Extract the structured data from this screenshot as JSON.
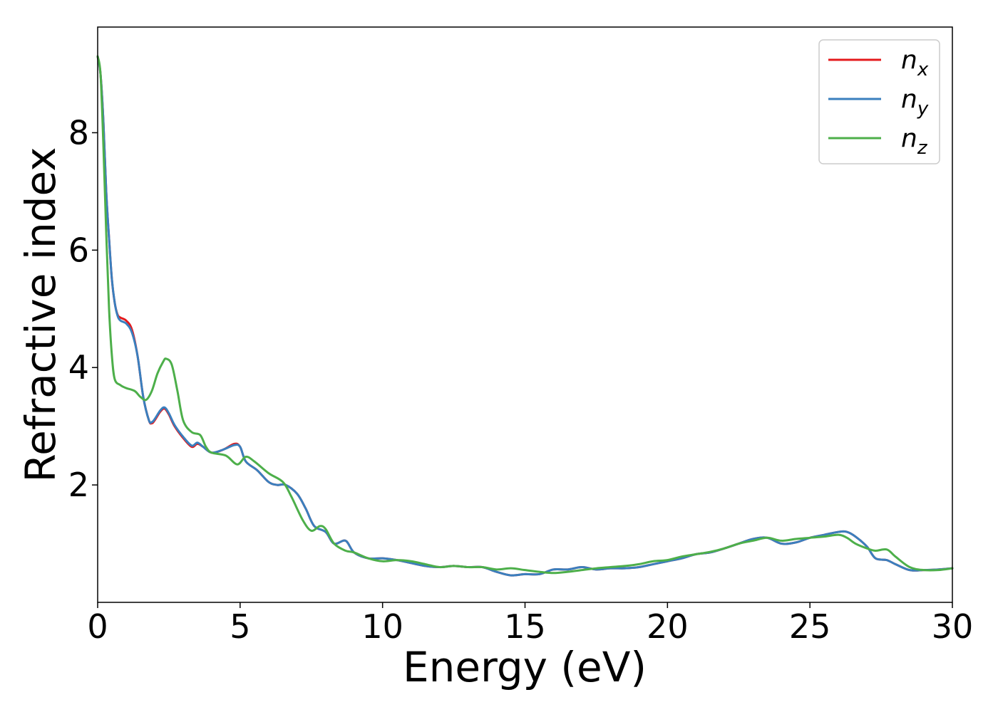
{
  "chart_data": {
    "type": "line",
    "title": "",
    "xlabel": "Energy (eV)",
    "ylabel": "Refractive index",
    "xlim": [
      0,
      30
    ],
    "ylim": [
      0.0,
      9.8
    ],
    "xticks": [
      0,
      5,
      10,
      15,
      20,
      25,
      30
    ],
    "yticks": [
      2,
      4,
      6,
      8
    ],
    "grid": false,
    "legend_position": "top-right",
    "series": [
      {
        "name": "n_x",
        "legend_main": "n",
        "legend_sub": "x",
        "color": "#e41a1c",
        "x": [
          0,
          0.1,
          0.2,
          0.3,
          0.4,
          0.5,
          0.6,
          0.7,
          0.8,
          1.0,
          1.2,
          1.4,
          1.6,
          1.8,
          1.9,
          2.0,
          2.2,
          2.35,
          2.5,
          2.7,
          3.0,
          3.3,
          3.5,
          3.7,
          4.0,
          4.4,
          4.8,
          5.0,
          5.2,
          5.6,
          6.0,
          6.3,
          6.6,
          7.0,
          7.3,
          7.6,
          8.0,
          8.3,
          8.7,
          9.0,
          9.5,
          10.0,
          10.5,
          11.0,
          11.5,
          12.0,
          12.5,
          13.0,
          13.5,
          14.0,
          14.5,
          15.0,
          15.5,
          16.0,
          16.5,
          17.0,
          17.5,
          18.0,
          18.5,
          19.0,
          19.5,
          20.0,
          20.5,
          21.0,
          21.5,
          22.0,
          22.5,
          23.0,
          23.5,
          24.0,
          24.5,
          25.0,
          25.5,
          26.0,
          26.3,
          26.6,
          27.0,
          27.3,
          27.7,
          28.0,
          28.5,
          29.0,
          29.5,
          30.0
        ],
        "y": [
          9.3,
          9.0,
          8.2,
          7.0,
          6.2,
          5.5,
          5.1,
          4.9,
          4.85,
          4.8,
          4.65,
          4.2,
          3.5,
          3.1,
          3.05,
          3.1,
          3.25,
          3.3,
          3.2,
          3.0,
          2.8,
          2.65,
          2.7,
          2.65,
          2.55,
          2.6,
          2.7,
          2.65,
          2.4,
          2.25,
          2.05,
          2.0,
          2.0,
          1.85,
          1.6,
          1.3,
          1.2,
          1.0,
          1.05,
          0.85,
          0.75,
          0.75,
          0.72,
          0.67,
          0.62,
          0.6,
          0.62,
          0.6,
          0.6,
          0.52,
          0.46,
          0.48,
          0.48,
          0.56,
          0.56,
          0.6,
          0.56,
          0.58,
          0.58,
          0.6,
          0.65,
          0.7,
          0.75,
          0.82,
          0.85,
          0.92,
          1.0,
          1.08,
          1.1,
          1.0,
          1.02,
          1.1,
          1.15,
          1.2,
          1.2,
          1.12,
          0.95,
          0.75,
          0.72,
          0.65,
          0.55,
          0.55,
          0.56,
          0.58
        ]
      },
      {
        "name": "n_y",
        "legend_main": "n",
        "legend_sub": "y",
        "color": "#3a7fbe",
        "x": [
          0,
          0.1,
          0.2,
          0.3,
          0.4,
          0.5,
          0.6,
          0.7,
          0.8,
          1.0,
          1.2,
          1.4,
          1.6,
          1.8,
          1.9,
          2.0,
          2.2,
          2.35,
          2.5,
          2.7,
          3.0,
          3.3,
          3.5,
          3.7,
          4.0,
          4.4,
          4.8,
          5.0,
          5.2,
          5.6,
          6.0,
          6.3,
          6.6,
          7.0,
          7.3,
          7.6,
          8.0,
          8.3,
          8.7,
          9.0,
          9.5,
          10.0,
          10.5,
          11.0,
          11.5,
          12.0,
          12.5,
          13.0,
          13.5,
          14.0,
          14.5,
          15.0,
          15.5,
          16.0,
          16.5,
          17.0,
          17.5,
          18.0,
          18.5,
          19.0,
          19.5,
          20.0,
          20.5,
          21.0,
          21.5,
          22.0,
          22.5,
          23.0,
          23.5,
          24.0,
          24.5,
          25.0,
          25.5,
          26.0,
          26.3,
          26.6,
          27.0,
          27.3,
          27.7,
          28.0,
          28.5,
          29.0,
          29.5,
          30.0
        ],
        "y": [
          9.3,
          9.0,
          8.2,
          7.0,
          6.2,
          5.5,
          5.1,
          4.88,
          4.8,
          4.75,
          4.6,
          4.2,
          3.5,
          3.1,
          3.07,
          3.12,
          3.27,
          3.32,
          3.22,
          3.02,
          2.82,
          2.67,
          2.72,
          2.65,
          2.55,
          2.6,
          2.68,
          2.65,
          2.4,
          2.25,
          2.05,
          2.0,
          2.0,
          1.85,
          1.6,
          1.3,
          1.2,
          1.0,
          1.05,
          0.85,
          0.75,
          0.75,
          0.72,
          0.67,
          0.62,
          0.6,
          0.62,
          0.6,
          0.6,
          0.52,
          0.46,
          0.48,
          0.48,
          0.56,
          0.56,
          0.6,
          0.56,
          0.58,
          0.58,
          0.6,
          0.65,
          0.7,
          0.75,
          0.82,
          0.85,
          0.92,
          1.0,
          1.08,
          1.1,
          1.0,
          1.02,
          1.1,
          1.15,
          1.2,
          1.2,
          1.12,
          0.95,
          0.75,
          0.72,
          0.65,
          0.55,
          0.55,
          0.56,
          0.58
        ]
      },
      {
        "name": "n_z",
        "legend_main": "n",
        "legend_sub": "z",
        "color": "#4daf4a",
        "x": [
          0,
          0.1,
          0.2,
          0.3,
          0.4,
          0.5,
          0.6,
          0.8,
          1.0,
          1.3,
          1.5,
          1.7,
          1.9,
          2.1,
          2.3,
          2.4,
          2.6,
          2.8,
          3.0,
          3.3,
          3.6,
          3.8,
          4.0,
          4.5,
          4.9,
          5.2,
          5.5,
          6.0,
          6.5,
          6.8,
          7.2,
          7.5,
          7.8,
          8.0,
          8.3,
          8.7,
          9.0,
          9.5,
          10.0,
          10.5,
          11.0,
          11.5,
          12.0,
          12.5,
          13.0,
          13.5,
          14.0,
          14.5,
          15.0,
          15.5,
          16.0,
          16.5,
          17.0,
          17.5,
          18.0,
          18.5,
          19.0,
          19.5,
          20.0,
          20.5,
          21.0,
          21.5,
          22.0,
          22.5,
          23.0,
          23.5,
          24.0,
          24.5,
          25.0,
          25.5,
          26.0,
          26.3,
          26.6,
          27.0,
          27.3,
          27.7,
          28.0,
          28.5,
          29.0,
          29.5,
          30.0
        ],
        "y": [
          9.3,
          9.0,
          7.8,
          6.3,
          5.0,
          4.2,
          3.8,
          3.7,
          3.65,
          3.6,
          3.5,
          3.45,
          3.6,
          3.9,
          4.1,
          4.15,
          4.05,
          3.6,
          3.1,
          2.9,
          2.85,
          2.65,
          2.55,
          2.5,
          2.35,
          2.48,
          2.4,
          2.2,
          2.05,
          1.8,
          1.4,
          1.22,
          1.3,
          1.25,
          1.0,
          0.88,
          0.85,
          0.75,
          0.7,
          0.72,
          0.7,
          0.65,
          0.6,
          0.62,
          0.6,
          0.6,
          0.56,
          0.58,
          0.55,
          0.52,
          0.5,
          0.52,
          0.55,
          0.58,
          0.6,
          0.62,
          0.65,
          0.7,
          0.72,
          0.78,
          0.82,
          0.86,
          0.92,
          1.0,
          1.05,
          1.1,
          1.05,
          1.08,
          1.1,
          1.12,
          1.15,
          1.1,
          1.0,
          0.92,
          0.88,
          0.9,
          0.78,
          0.6,
          0.55,
          0.55,
          0.58
        ]
      }
    ]
  }
}
